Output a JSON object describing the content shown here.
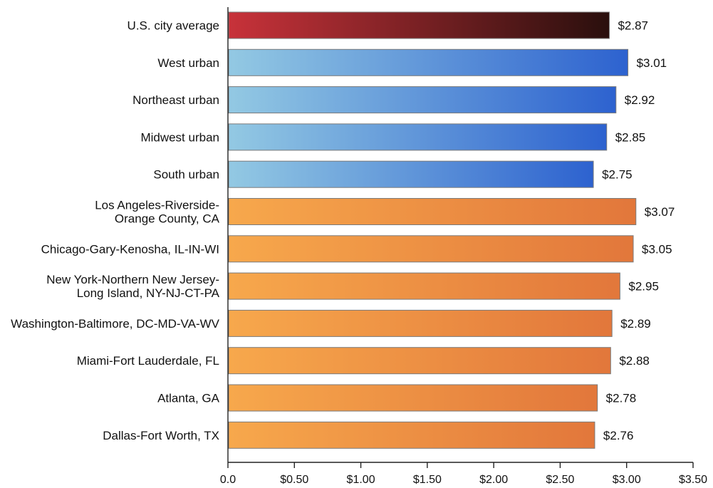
{
  "chart_data": {
    "type": "bar",
    "orientation": "horizontal",
    "title": "",
    "xlabel": "",
    "ylabel": "",
    "categories": [
      [
        "U.S. city average"
      ],
      [
        "West urban"
      ],
      [
        "Northeast urban"
      ],
      [
        "Midwest urban"
      ],
      [
        "South urban"
      ],
      [
        "Los Angeles-Riverside-",
        "Orange County, CA"
      ],
      [
        "Chicago-Gary-Kenosha, IL-IN-WI"
      ],
      [
        "New York-Northern New Jersey-",
        "Long Island, NY-NJ-CT-PA"
      ],
      [
        "Washington-Baltimore, DC-MD-VA-WV"
      ],
      [
        "Miami-Fort Lauderdale, FL"
      ],
      [
        "Atlanta, GA"
      ],
      [
        "Dallas-Fort Worth, TX"
      ]
    ],
    "values": [
      2.87,
      3.01,
      2.92,
      2.85,
      2.75,
      3.07,
      3.05,
      2.95,
      2.89,
      2.88,
      2.78,
      2.76
    ],
    "value_labels": [
      "$2.87",
      "$3.01",
      "$2.92",
      "$2.85",
      "$2.75",
      "$3.07",
      "$3.05",
      "$2.95",
      "$2.89",
      "$2.88",
      "$2.78",
      "$2.76"
    ],
    "groups": [
      "national",
      "region",
      "region",
      "region",
      "region",
      "metro",
      "metro",
      "metro",
      "metro",
      "metro",
      "metro",
      "metro"
    ],
    "group_colors": {
      "national": [
        "#c8323a",
        "#2a0f0d"
      ],
      "region": [
        "#93c9e3",
        "#2d62cf"
      ],
      "metro": [
        "#f7a84c",
        "#e2773b"
      ]
    },
    "xlim": [
      0,
      3.5
    ],
    "xticks": [
      0,
      0.5,
      1.0,
      1.5,
      2.0,
      2.5,
      3.0,
      3.5
    ],
    "xtick_labels": [
      "0.0",
      "$0.50",
      "$1.00",
      "$1.50",
      "$2.00",
      "$2.50",
      "$3.00",
      "$3.50"
    ],
    "grid": false,
    "legend": "none"
  }
}
